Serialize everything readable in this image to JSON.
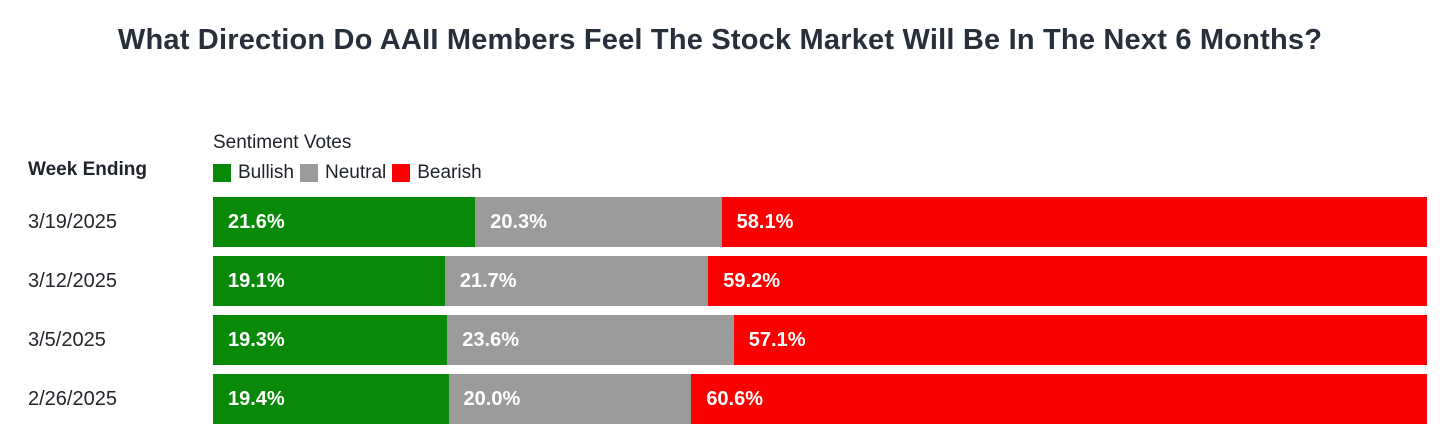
{
  "title": "What Direction Do AAII Members Feel The Stock Market Will Be In The Next 6 Months?",
  "axis": {
    "row_header": "Week Ending"
  },
  "legend": {
    "heading": "Sentiment Votes",
    "items": [
      {
        "label": "Bullish",
        "color": "#088a08"
      },
      {
        "label": "Neutral",
        "color": "#9b9b9b"
      },
      {
        "label": "Bearish",
        "color": "#fb0000"
      }
    ]
  },
  "colors": {
    "bullish": "#088a08",
    "neutral": "#9b9b9b",
    "bearish": "#fb0000",
    "title_text": "#272f3b",
    "label_text": "#1e222a",
    "bar_value_text": "#ffffff",
    "background": "#ffffff"
  },
  "chart_data": {
    "type": "bar",
    "orientation": "horizontal",
    "stacked": true,
    "title": "What Direction Do AAII Members Feel The Stock Market Will Be In The Next 6 Months?",
    "categories": [
      "3/19/2025",
      "3/12/2025",
      "3/5/2025",
      "2/26/2025"
    ],
    "series": [
      {
        "name": "Bullish",
        "color": "#088a08",
        "values": [
          21.6,
          19.1,
          19.3,
          19.4
        ]
      },
      {
        "name": "Neutral",
        "color": "#9b9b9b",
        "values": [
          20.3,
          21.7,
          23.6,
          20.0
        ]
      },
      {
        "name": "Bearish",
        "color": "#fb0000",
        "values": [
          58.1,
          59.2,
          57.1,
          60.6
        ]
      }
    ],
    "value_format": "percent",
    "xlim": [
      0,
      100
    ],
    "grid": false,
    "legend_position": "top",
    "category_axis_label": "Week Ending",
    "legend_title": "Sentiment Votes"
  },
  "rows": [
    {
      "date": "3/19/2025",
      "bullish": "21.6%",
      "neutral": "20.3%",
      "bearish": "58.1%"
    },
    {
      "date": "3/12/2025",
      "bullish": "19.1%",
      "neutral": "21.7%",
      "bearish": "59.2%"
    },
    {
      "date": "3/5/2025",
      "bullish": "19.3%",
      "neutral": "23.6%",
      "bearish": "57.1%"
    },
    {
      "date": "2/26/2025",
      "bullish": "19.4%",
      "neutral": "20.0%",
      "bearish": "60.6%"
    }
  ]
}
